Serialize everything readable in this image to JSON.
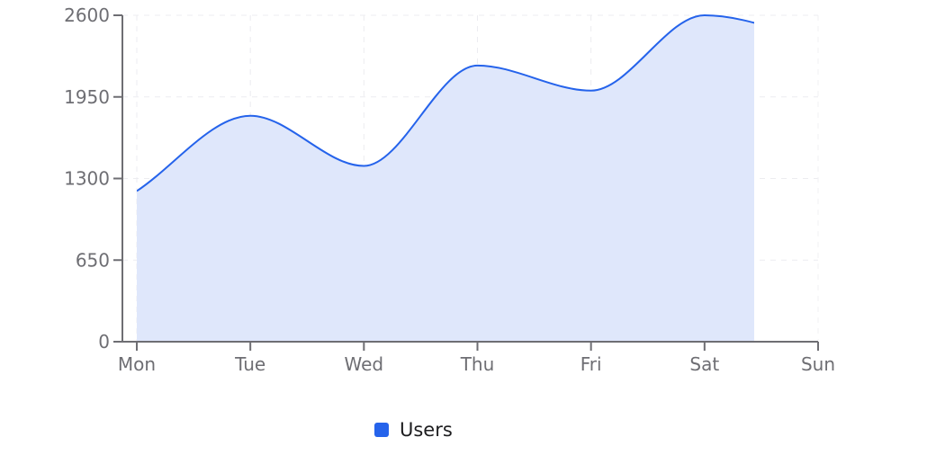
{
  "chart_data": {
    "type": "area",
    "title": "",
    "xlabel": "",
    "ylabel": "",
    "categories": [
      "Mon",
      "Tue",
      "Wed",
      "Thu",
      "Fri",
      "Sat",
      "Sun"
    ],
    "series": [
      {
        "name": "Users",
        "values": [
          1200,
          1800,
          1400,
          2200,
          2000,
          2600,
          2400
        ],
        "color": "#2563eb",
        "fill": "#dfe7fb"
      }
    ],
    "ylim": [
      0,
      2600
    ],
    "yticks": [
      0,
      650,
      1300,
      1950,
      2600
    ],
    "grid": true,
    "legend_position": "bottom",
    "notes": "Area rendering is clipped at x≈838px, partway between Sat and Sun"
  },
  "legend": {
    "items": [
      {
        "label": "Users",
        "color": "#2563eb"
      }
    ]
  }
}
